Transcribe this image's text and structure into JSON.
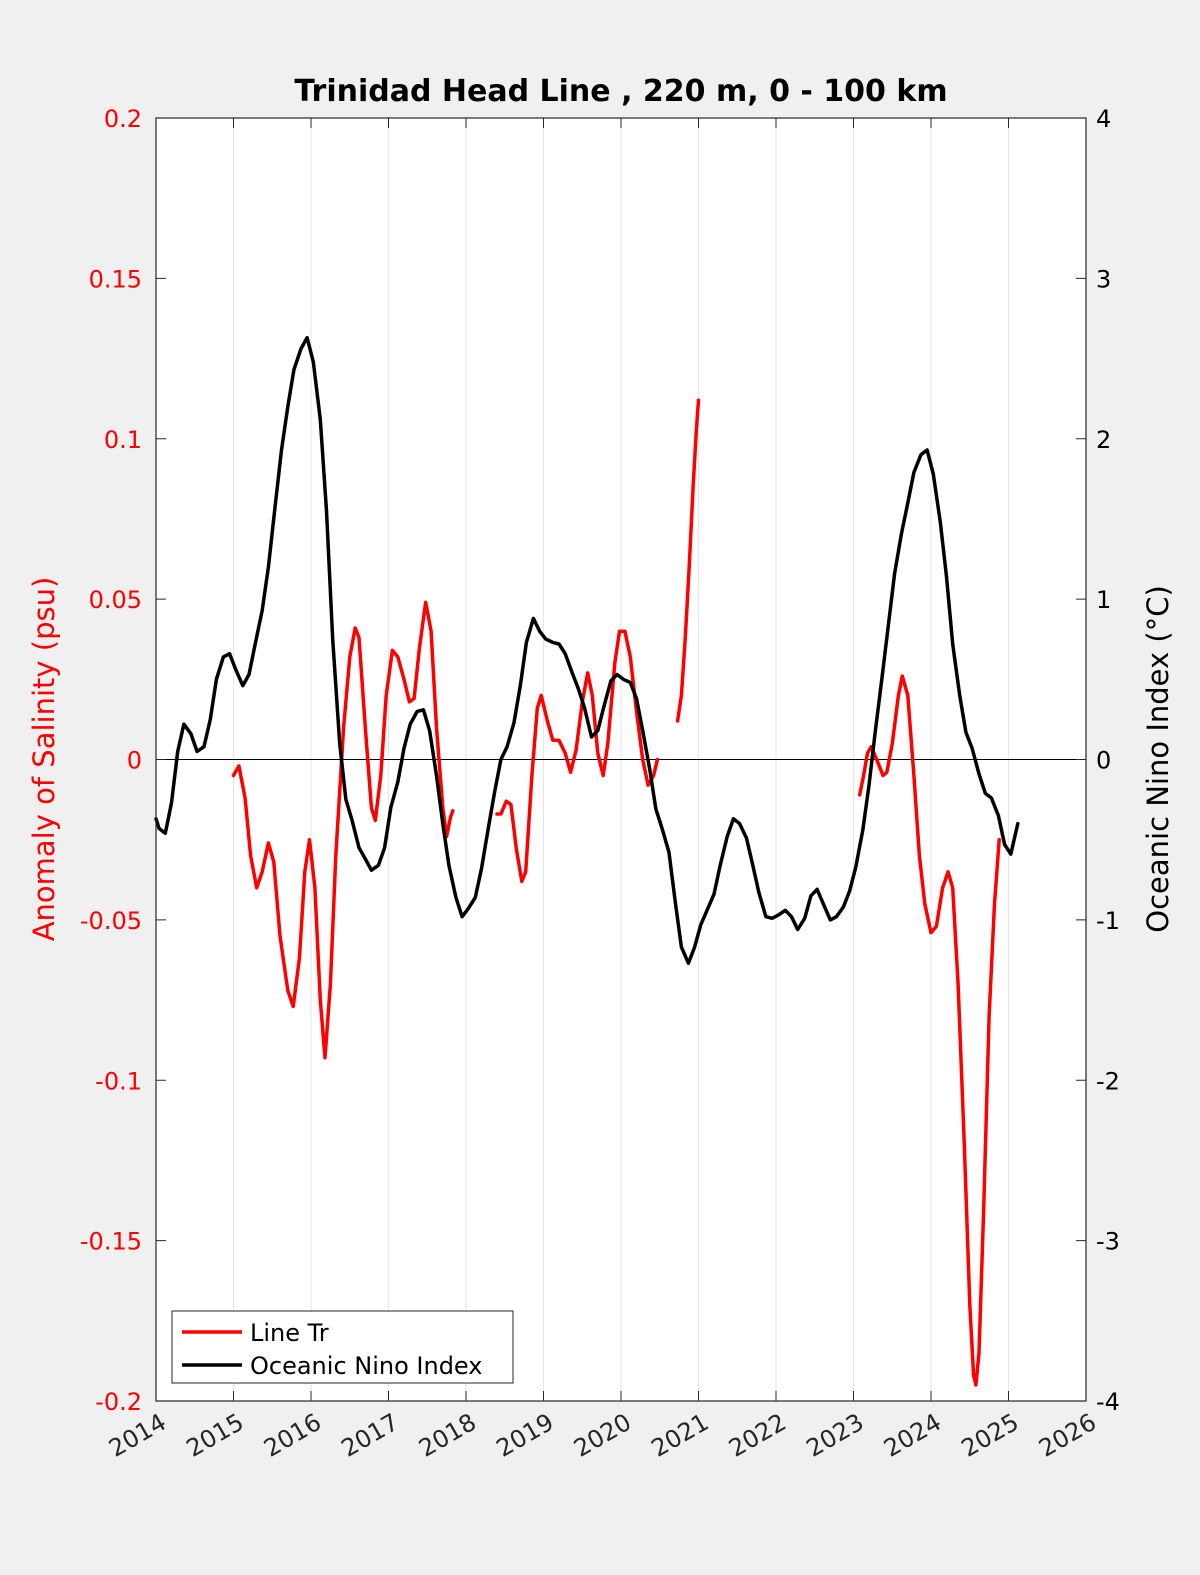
{
  "chart_data": {
    "type": "line",
    "title": "Trinidad Head Line , 220 m, 0 - 100 km",
    "xlabel": "",
    "ylabel_left": "Anomaly of Salinity (psu)",
    "ylabel_right": "Oceanic Nino Index (°C)",
    "xlim": [
      2014,
      2026
    ],
    "ylim_left": [
      -0.2,
      0.2
    ],
    "ylim_right": [
      -4,
      4
    ],
    "x_ticks": [
      "2014",
      "2015",
      "2016",
      "2017",
      "2018",
      "2019",
      "2020",
      "2021",
      "2022",
      "2023",
      "2024",
      "2025",
      "2026"
    ],
    "y_left_ticks": [
      "-0.2",
      "-0.15",
      "-0.1",
      "-0.05",
      "0",
      "0.05",
      "0.1",
      "0.15",
      "0.2"
    ],
    "y_right_ticks": [
      "-4",
      "-3",
      "-2",
      "-1",
      "0",
      "1",
      "2",
      "3",
      "4"
    ],
    "grid": "x-only",
    "legend_position": "bottom-left",
    "colors": {
      "salinity": "#ff0000",
      "oni": "#000000",
      "left_axis": "#ff0000",
      "right_axis": "#000000"
    },
    "series": [
      {
        "name": "Line Tr",
        "axis": "left",
        "segments": [
          [
            [
              2015.0,
              -0.005
            ],
            [
              2015.07,
              -0.002
            ],
            [
              2015.15,
              -0.012
            ],
            [
              2015.22,
              -0.03
            ],
            [
              2015.3,
              -0.04
            ],
            [
              2015.37,
              -0.035
            ],
            [
              2015.45,
              -0.026
            ],
            [
              2015.52,
              -0.032
            ],
            [
              2015.6,
              -0.055
            ],
            [
              2015.7,
              -0.072
            ],
            [
              2015.77,
              -0.077
            ],
            [
              2015.85,
              -0.062
            ],
            [
              2015.92,
              -0.035
            ],
            [
              2015.98,
              -0.025
            ],
            [
              2016.05,
              -0.04
            ],
            [
              2016.12,
              -0.075
            ],
            [
              2016.18,
              -0.093
            ],
            [
              2016.25,
              -0.07
            ],
            [
              2016.32,
              -0.03
            ],
            [
              2016.42,
              0.01
            ],
            [
              2016.5,
              0.032
            ],
            [
              2016.57,
              0.041
            ],
            [
              2016.62,
              0.038
            ],
            [
              2016.7,
              0.01
            ],
            [
              2016.78,
              -0.015
            ],
            [
              2016.83,
              -0.019
            ],
            [
              2016.9,
              -0.005
            ],
            [
              2016.97,
              0.02
            ],
            [
              2017.05,
              0.034
            ],
            [
              2017.12,
              0.032
            ],
            [
              2017.2,
              0.025
            ],
            [
              2017.27,
              0.018
            ],
            [
              2017.33,
              0.019
            ],
            [
              2017.4,
              0.035
            ],
            [
              2017.48,
              0.049
            ],
            [
              2017.55,
              0.04
            ],
            [
              2017.62,
              0.01
            ],
            [
              2017.7,
              -0.015
            ],
            [
              2017.75,
              -0.024
            ],
            [
              2017.8,
              -0.018
            ],
            [
              2017.83,
              -0.016
            ]
          ],
          [
            [
              2018.4,
              -0.017
            ],
            [
              2018.45,
              -0.017
            ],
            [
              2018.52,
              -0.013
            ],
            [
              2018.58,
              -0.014
            ],
            [
              2018.65,
              -0.028
            ],
            [
              2018.72,
              -0.038
            ],
            [
              2018.77,
              -0.035
            ],
            [
              2018.85,
              -0.005
            ],
            [
              2018.92,
              0.016
            ],
            [
              2018.97,
              0.02
            ],
            [
              2019.05,
              0.012
            ],
            [
              2019.12,
              0.006
            ],
            [
              2019.2,
              0.006
            ],
            [
              2019.28,
              0.002
            ],
            [
              2019.35,
              -0.004
            ],
            [
              2019.42,
              0.003
            ],
            [
              2019.5,
              0.018
            ],
            [
              2019.57,
              0.027
            ],
            [
              2019.63,
              0.02
            ],
            [
              2019.7,
              0.002
            ],
            [
              2019.77,
              -0.005
            ],
            [
              2019.83,
              0.005
            ],
            [
              2019.92,
              0.03
            ],
            [
              2019.98,
              0.04
            ],
            [
              2020.05,
              0.04
            ],
            [
              2020.12,
              0.032
            ],
            [
              2020.2,
              0.015
            ],
            [
              2020.28,
              0.0
            ],
            [
              2020.35,
              -0.008
            ],
            [
              2020.42,
              -0.005
            ],
            [
              2020.47,
              0.0
            ]
          ],
          [
            [
              2020.73,
              0.012
            ],
            [
              2020.78,
              0.02
            ],
            [
              2020.83,
              0.038
            ],
            [
              2020.88,
              0.06
            ],
            [
              2020.93,
              0.085
            ],
            [
              2020.97,
              0.102
            ],
            [
              2021.0,
              0.112
            ]
          ],
          [
            [
              2023.08,
              -0.011
            ],
            [
              2023.13,
              -0.005
            ],
            [
              2023.18,
              0.002
            ],
            [
              2023.23,
              0.004
            ],
            [
              2023.3,
              0.0
            ],
            [
              2023.38,
              -0.005
            ],
            [
              2023.43,
              -0.004
            ],
            [
              2023.5,
              0.005
            ],
            [
              2023.58,
              0.02
            ],
            [
              2023.63,
              0.026
            ],
            [
              2023.7,
              0.02
            ],
            [
              2023.78,
              -0.005
            ],
            [
              2023.85,
              -0.03
            ],
            [
              2023.92,
              -0.045
            ],
            [
              2024.0,
              -0.054
            ],
            [
              2024.07,
              -0.052
            ],
            [
              2024.15,
              -0.04
            ],
            [
              2024.22,
              -0.035
            ],
            [
              2024.28,
              -0.04
            ],
            [
              2024.35,
              -0.07
            ],
            [
              2024.43,
              -0.12
            ],
            [
              2024.5,
              -0.17
            ],
            [
              2024.55,
              -0.192
            ],
            [
              2024.58,
              -0.195
            ],
            [
              2024.62,
              -0.185
            ],
            [
              2024.68,
              -0.14
            ],
            [
              2024.75,
              -0.08
            ],
            [
              2024.82,
              -0.045
            ],
            [
              2024.88,
              -0.025
            ]
          ]
        ]
      },
      {
        "name": "Oceanic Nino Index",
        "axis": "right",
        "segments": [
          [
            [
              2014.0,
              -0.37
            ],
            [
              2014.04,
              -0.43
            ],
            [
              2014.12,
              -0.46
            ],
            [
              2014.2,
              -0.27
            ],
            [
              2014.28,
              0.05
            ],
            [
              2014.36,
              0.22
            ],
            [
              2014.45,
              0.16
            ],
            [
              2014.53,
              0.05
            ],
            [
              2014.62,
              0.08
            ],
            [
              2014.7,
              0.25
            ],
            [
              2014.78,
              0.5
            ],
            [
              2014.87,
              0.64
            ],
            [
              2014.95,
              0.66
            ],
            [
              2015.03,
              0.56
            ],
            [
              2015.12,
              0.46
            ],
            [
              2015.2,
              0.53
            ],
            [
              2015.28,
              0.72
            ],
            [
              2015.37,
              0.93
            ],
            [
              2015.45,
              1.2
            ],
            [
              2015.53,
              1.55
            ],
            [
              2015.62,
              1.93
            ],
            [
              2015.7,
              2.2
            ],
            [
              2015.78,
              2.43
            ],
            [
              2015.87,
              2.56
            ],
            [
              2015.95,
              2.63
            ],
            [
              2016.03,
              2.48
            ],
            [
              2016.12,
              2.12
            ],
            [
              2016.2,
              1.55
            ],
            [
              2016.28,
              0.75
            ],
            [
              2016.37,
              0.1
            ],
            [
              2016.45,
              -0.25
            ],
            [
              2016.53,
              -0.38
            ],
            [
              2016.62,
              -0.55
            ],
            [
              2016.7,
              -0.62
            ],
            [
              2016.78,
              -0.69
            ],
            [
              2016.87,
              -0.66
            ],
            [
              2016.95,
              -0.55
            ],
            [
              2017.03,
              -0.3
            ],
            [
              2017.12,
              -0.14
            ],
            [
              2017.2,
              0.07
            ],
            [
              2017.28,
              0.22
            ],
            [
              2017.37,
              0.3
            ],
            [
              2017.45,
              0.31
            ],
            [
              2017.53,
              0.18
            ],
            [
              2017.62,
              -0.1
            ],
            [
              2017.7,
              -0.4
            ],
            [
              2017.78,
              -0.66
            ],
            [
              2017.87,
              -0.86
            ],
            [
              2017.95,
              -0.98
            ],
            [
              2018.03,
              -0.93
            ],
            [
              2018.12,
              -0.86
            ],
            [
              2018.2,
              -0.68
            ],
            [
              2018.28,
              -0.45
            ],
            [
              2018.37,
              -0.2
            ],
            [
              2018.45,
              0.0
            ],
            [
              2018.53,
              0.08
            ],
            [
              2018.62,
              0.23
            ],
            [
              2018.7,
              0.46
            ],
            [
              2018.78,
              0.73
            ],
            [
              2018.87,
              0.88
            ],
            [
              2018.95,
              0.8
            ],
            [
              2019.03,
              0.75
            ],
            [
              2019.12,
              0.73
            ],
            [
              2019.2,
              0.72
            ],
            [
              2019.28,
              0.66
            ],
            [
              2019.37,
              0.54
            ],
            [
              2019.45,
              0.44
            ],
            [
              2019.53,
              0.32
            ],
            [
              2019.62,
              0.14
            ],
            [
              2019.7,
              0.18
            ],
            [
              2019.78,
              0.33
            ],
            [
              2019.87,
              0.49
            ],
            [
              2019.95,
              0.53
            ],
            [
              2020.03,
              0.5
            ],
            [
              2020.12,
              0.48
            ],
            [
              2020.2,
              0.38
            ],
            [
              2020.28,
              0.18
            ],
            [
              2020.37,
              -0.06
            ],
            [
              2020.45,
              -0.31
            ],
            [
              2020.53,
              -0.43
            ],
            [
              2020.62,
              -0.58
            ],
            [
              2020.7,
              -0.89
            ],
            [
              2020.78,
              -1.17
            ],
            [
              2020.87,
              -1.27
            ],
            [
              2020.95,
              -1.17
            ],
            [
              2021.03,
              -1.03
            ],
            [
              2021.12,
              -0.93
            ],
            [
              2021.2,
              -0.84
            ],
            [
              2021.28,
              -0.66
            ],
            [
              2021.37,
              -0.48
            ],
            [
              2021.45,
              -0.37
            ],
            [
              2021.53,
              -0.4
            ],
            [
              2021.62,
              -0.49
            ],
            [
              2021.7,
              -0.66
            ],
            [
              2021.78,
              -0.83
            ],
            [
              2021.87,
              -0.98
            ],
            [
              2021.95,
              -0.99
            ],
            [
              2022.03,
              -0.97
            ],
            [
              2022.12,
              -0.94
            ],
            [
              2022.2,
              -0.98
            ],
            [
              2022.28,
              -1.06
            ],
            [
              2022.37,
              -0.99
            ],
            [
              2022.45,
              -0.85
            ],
            [
              2022.53,
              -0.81
            ],
            [
              2022.62,
              -0.91
            ],
            [
              2022.7,
              -1.0
            ],
            [
              2022.78,
              -0.98
            ],
            [
              2022.87,
              -0.92
            ],
            [
              2022.95,
              -0.82
            ],
            [
              2023.03,
              -0.67
            ],
            [
              2023.12,
              -0.44
            ],
            [
              2023.2,
              -0.16
            ],
            [
              2023.28,
              0.17
            ],
            [
              2023.37,
              0.52
            ],
            [
              2023.45,
              0.84
            ],
            [
              2023.53,
              1.16
            ],
            [
              2023.62,
              1.41
            ],
            [
              2023.7,
              1.6
            ],
            [
              2023.78,
              1.79
            ],
            [
              2023.87,
              1.9
            ],
            [
              2023.95,
              1.93
            ],
            [
              2024.03,
              1.78
            ],
            [
              2024.12,
              1.48
            ],
            [
              2024.2,
              1.14
            ],
            [
              2024.28,
              0.72
            ],
            [
              2024.37,
              0.4
            ],
            [
              2024.45,
              0.17
            ],
            [
              2024.53,
              0.07
            ],
            [
              2024.62,
              -0.09
            ],
            [
              2024.7,
              -0.21
            ],
            [
              2024.78,
              -0.24
            ],
            [
              2024.87,
              -0.35
            ],
            [
              2024.95,
              -0.53
            ],
            [
              2025.03,
              -0.59
            ],
            [
              2025.12,
              -0.4
            ]
          ]
        ]
      }
    ]
  },
  "legend": [
    {
      "label": "Line Tr",
      "color": "#ff0000"
    },
    {
      "label": "Oceanic Nino Index",
      "color": "#000000"
    }
  ]
}
